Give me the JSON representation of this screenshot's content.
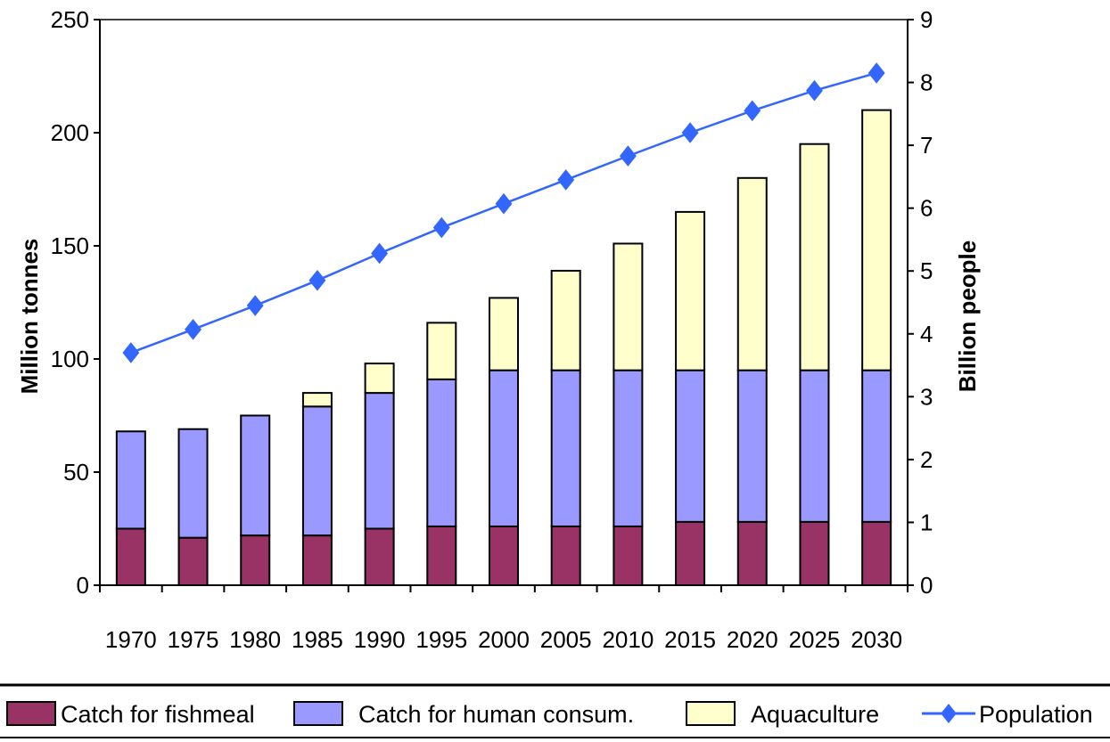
{
  "chart_data": {
    "type": "bar",
    "stacked": true,
    "categories": [
      "1970",
      "1975",
      "1980",
      "1985",
      "1990",
      "1995",
      "2000",
      "2005",
      "2010",
      "2015",
      "2020",
      "2025",
      "2030"
    ],
    "series": [
      {
        "name": "Catch for fishmeal",
        "type": "bar",
        "axis": "left",
        "color": "#993366",
        "values": [
          25,
          21,
          22,
          22,
          25,
          26,
          26,
          26,
          26,
          28,
          28,
          28,
          28
        ]
      },
      {
        "name": "Catch for human consum.",
        "type": "bar",
        "axis": "left",
        "color": "#9999ff",
        "values": [
          43,
          48,
          53,
          57,
          60,
          65,
          69,
          69,
          69,
          67,
          67,
          67,
          67
        ]
      },
      {
        "name": "Aquaculture",
        "type": "bar",
        "axis": "left",
        "color": "#ffffcc",
        "values": [
          0,
          0,
          0,
          6,
          13,
          25,
          32,
          44,
          56,
          70,
          85,
          100,
          115
        ]
      },
      {
        "name": "Population",
        "type": "line",
        "axis": "right",
        "color": "#3366ff",
        "values": [
          3.7,
          4.07,
          4.45,
          4.85,
          5.28,
          5.69,
          6.07,
          6.45,
          6.83,
          7.2,
          7.55,
          7.87,
          8.15
        ]
      }
    ],
    "ylabel": "Million tonnes",
    "y2label": "Billion people",
    "ylim": [
      0,
      250
    ],
    "y2lim": [
      0,
      9
    ],
    "yticks": [
      "0",
      "50",
      "100",
      "150",
      "200",
      "250"
    ],
    "y2ticks": [
      "0",
      "1",
      "2",
      "3",
      "4",
      "5",
      "6",
      "7",
      "8",
      "9"
    ],
    "grid": false,
    "legend_position": "bottom"
  }
}
